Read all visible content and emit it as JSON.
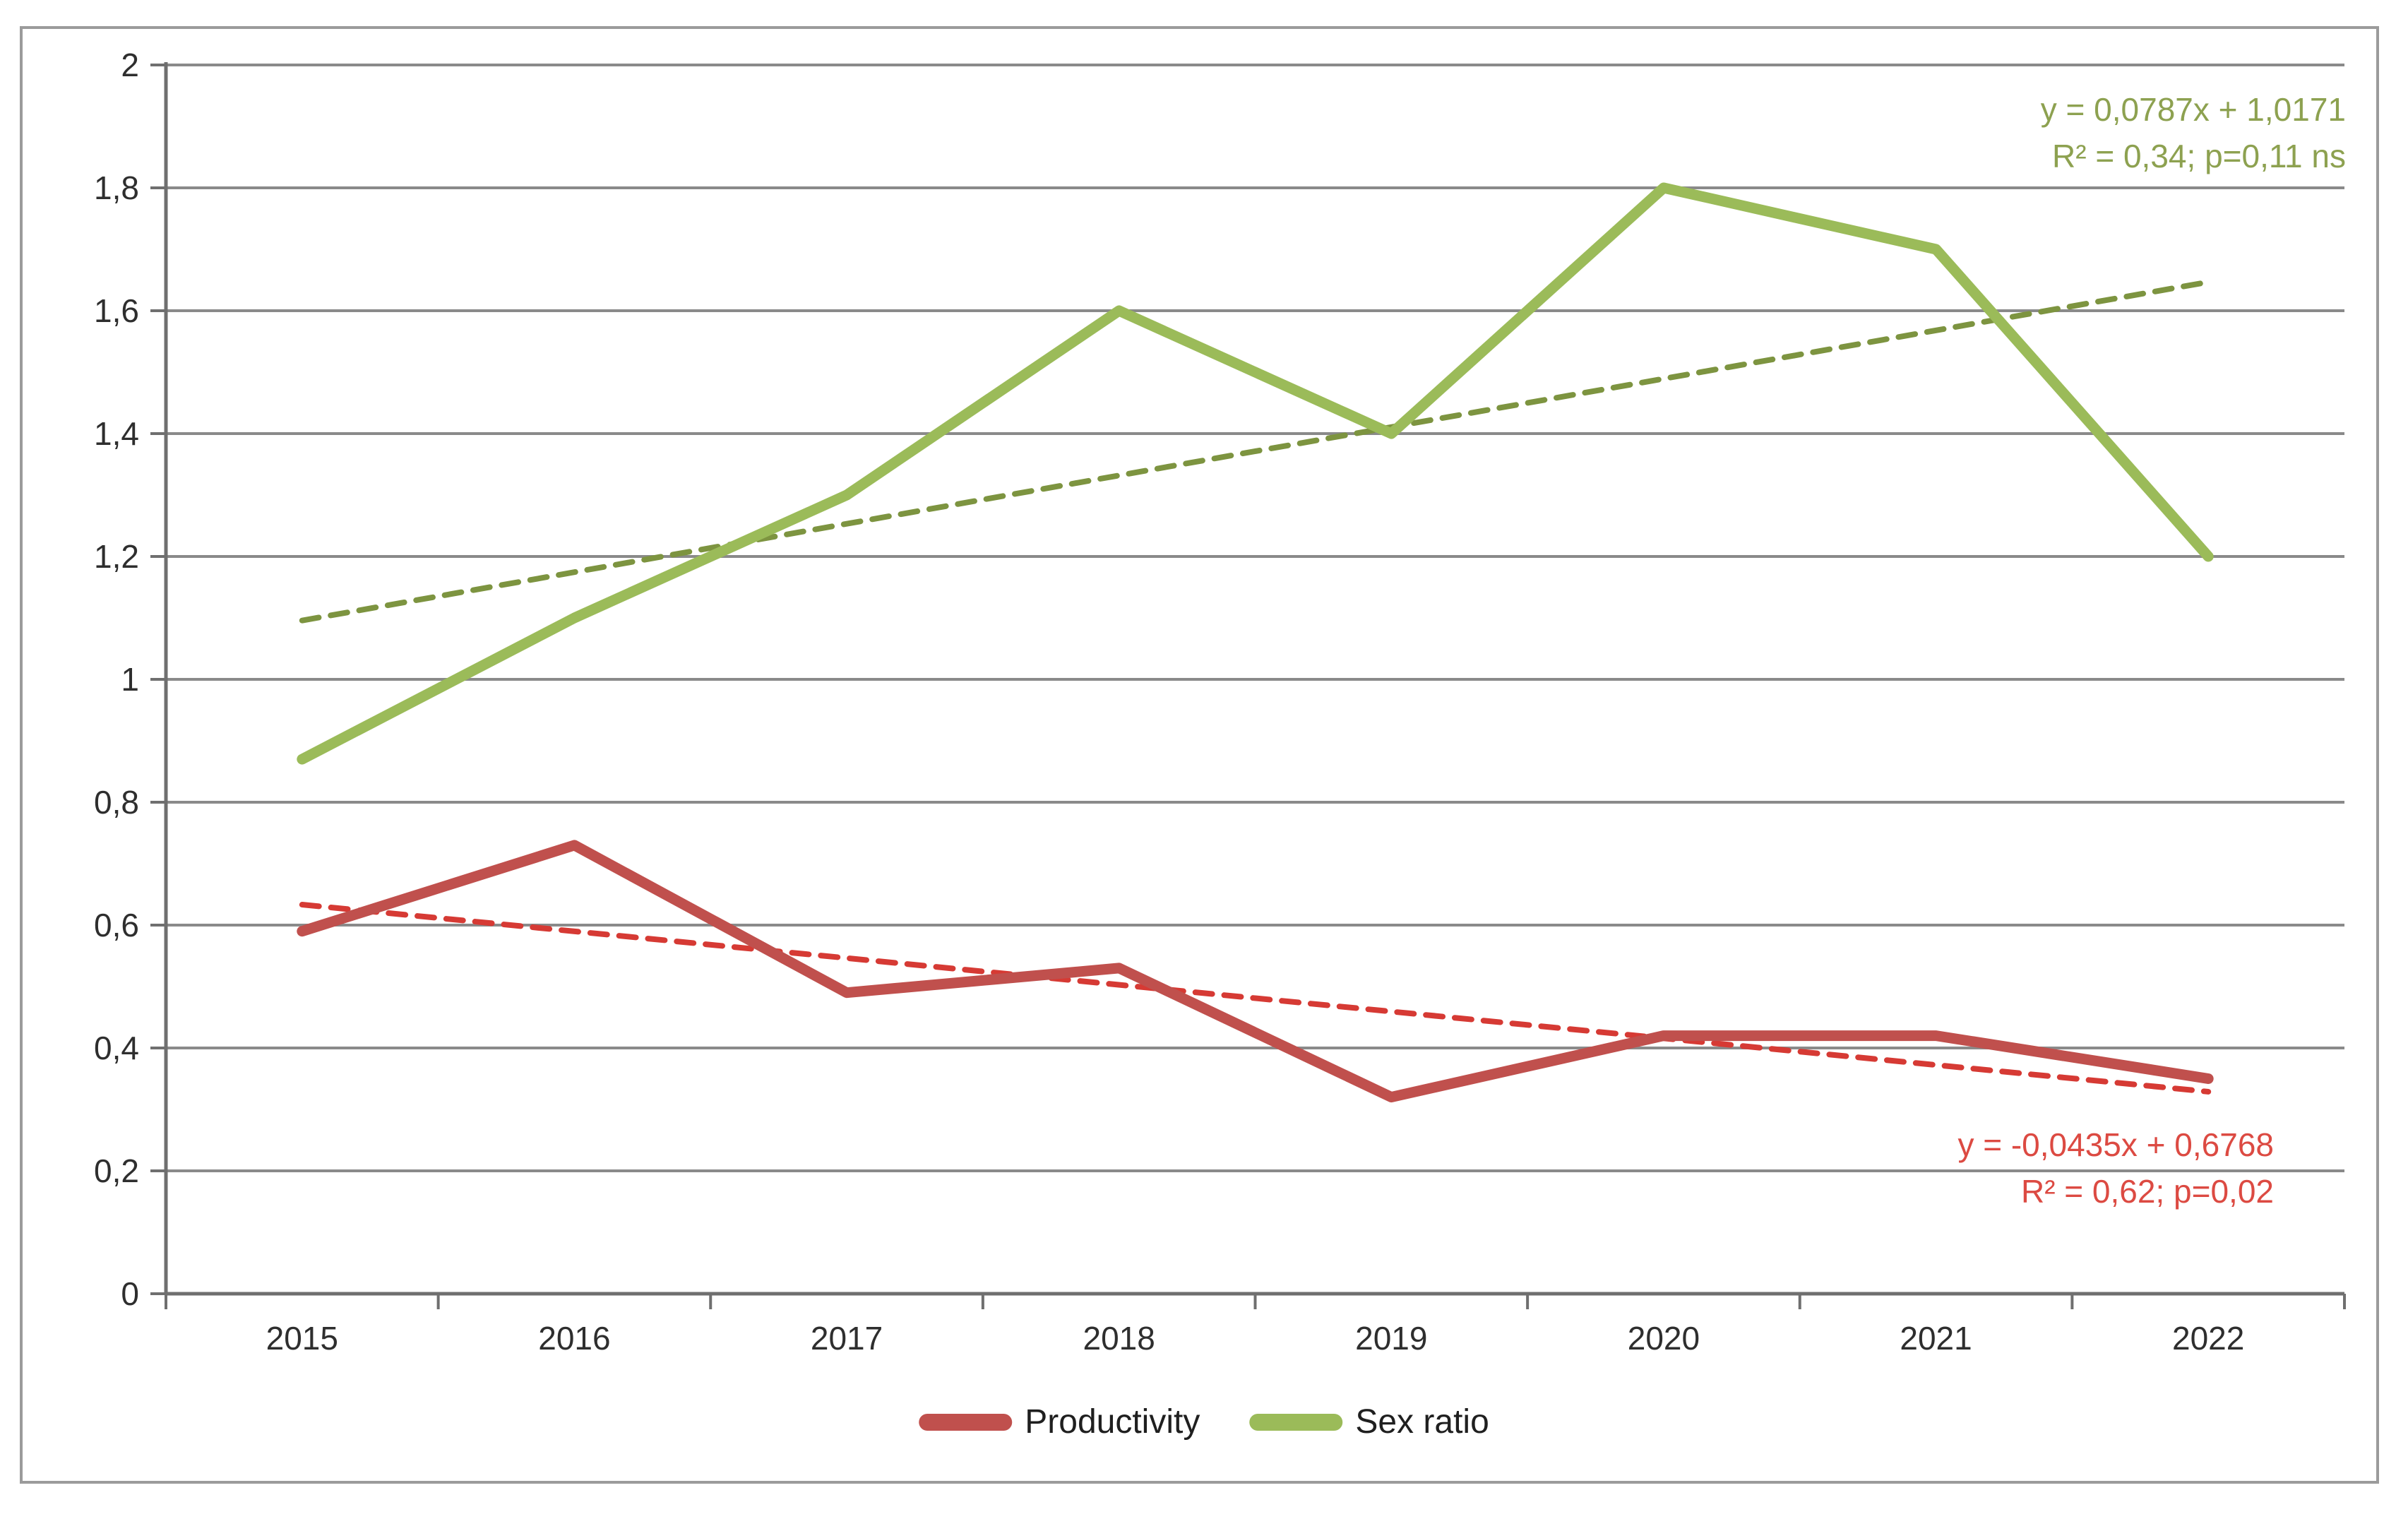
{
  "chart_data": {
    "type": "line",
    "x": [
      2015,
      2016,
      2017,
      2018,
      2019,
      2020,
      2021,
      2022
    ],
    "xtick_labels": [
      "2015",
      "2016",
      "2017",
      "2018",
      "2019",
      "2020",
      "2021",
      "2022"
    ],
    "ytick_labels": [
      "0",
      "0,2",
      "0,4",
      "0,6",
      "0,8",
      "1",
      "1,2",
      "1,4",
      "1,6",
      "1,8",
      "2"
    ],
    "ylim": [
      0,
      2
    ],
    "ytick_step": 0.2,
    "grid": true,
    "legend_position": "bottom",
    "series": [
      {
        "name": "Productivity",
        "color": "#c0504d",
        "values": [
          0.59,
          0.73,
          0.49,
          0.53,
          0.32,
          0.42,
          0.42,
          0.35
        ],
        "trendline": {
          "style": "dashed",
          "color": "#d63a34",
          "slope": -0.0435,
          "intercept": 0.6768,
          "text_color": "#dc4a42",
          "label_line1": "y = -0,0435x + 0,6768",
          "label_line2": "R² = 0,62; p=0,02"
        }
      },
      {
        "name": "Sex ratio",
        "color": "#9bbb59",
        "values": [
          0.87,
          1.1,
          1.3,
          1.6,
          1.4,
          1.8,
          1.7,
          1.2
        ],
        "trendline": {
          "style": "dashed",
          "color": "#7d9440",
          "slope": 0.0787,
          "intercept": 1.0171,
          "text_color": "#8da150",
          "label_line1": "y = 0,0787x + 1,0171",
          "label_line2": "R² = 0,34; p=0,11 ns"
        }
      }
    ],
    "colors": {
      "gridline": "#8a8a8a",
      "axis": "#6f6f6f",
      "figure_border": "#9b9b9b",
      "tick_label": "#2e2e2e",
      "legend_label": "#1f1f1f"
    }
  }
}
